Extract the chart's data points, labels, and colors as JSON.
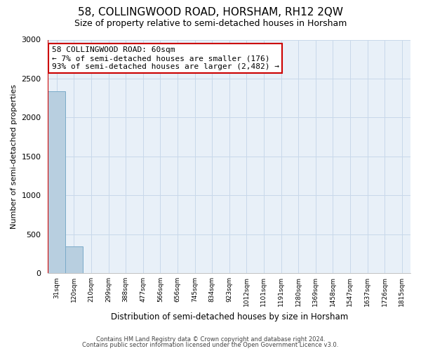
{
  "title": "58, COLLINGWOOD ROAD, HORSHAM, RH12 2QW",
  "subtitle": "Size of property relative to semi-detached houses in Horsham",
  "xlabel": "Distribution of semi-detached houses by size in Horsham",
  "ylabel": "Number of semi-detached properties",
  "bar_labels": [
    "31sqm",
    "120sqm",
    "210sqm",
    "299sqm",
    "388sqm",
    "477sqm",
    "566sqm",
    "656sqm",
    "745sqm",
    "834sqm",
    "923sqm",
    "1012sqm",
    "1101sqm",
    "1191sqm",
    "1280sqm",
    "1369sqm",
    "1458sqm",
    "1547sqm",
    "1637sqm",
    "1726sqm",
    "1815sqm"
  ],
  "bar_values": [
    2340,
    340,
    0,
    0,
    0,
    0,
    0,
    0,
    0,
    0,
    0,
    0,
    0,
    0,
    0,
    0,
    0,
    0,
    0,
    0,
    0
  ],
  "bar_color": "#b8cfe0",
  "bar_edge_color": "#7aaac8",
  "highlight_color": "#cc0000",
  "annotation_title": "58 COLLINGWOOD ROAD: 60sqm",
  "annotation_line1": "← 7% of semi-detached houses are smaller (176)",
  "annotation_line2": "93% of semi-detached houses are larger (2,482) →",
  "annotation_box_color": "#ffffff",
  "annotation_box_edge": "#cc0000",
  "ylim": [
    0,
    3000
  ],
  "yticks": [
    0,
    500,
    1000,
    1500,
    2000,
    2500,
    3000
  ],
  "footer1": "Contains HM Land Registry data © Crown copyright and database right 2024.",
  "footer2": "Contains public sector information licensed under the Open Government Licence v3.0.",
  "title_fontsize": 11,
  "subtitle_fontsize": 9,
  "background_color": "#ffffff",
  "grid_color": "#c8d8ea"
}
